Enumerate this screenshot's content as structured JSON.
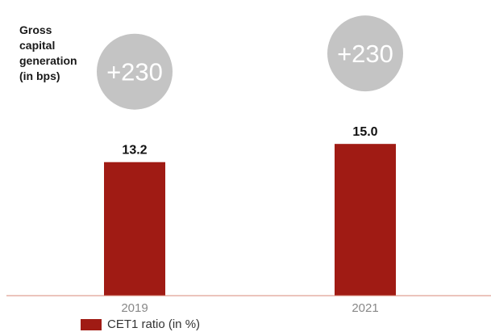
{
  "side_label": {
    "lines": [
      "Gross",
      "capital",
      "generation",
      "(in bps)"
    ]
  },
  "colors": {
    "bar": "#a01b14",
    "badge": "#c4c4c4",
    "badge_text": "#ffffff",
    "axis": "#d98a7a",
    "tick": "#888888",
    "value_label": "#111111"
  },
  "badges": [
    "+230",
    "+230"
  ],
  "chart_data": {
    "type": "bar",
    "categories": [
      "2019",
      "2021"
    ],
    "series": [
      {
        "name": "CET1 ratio (in %)",
        "values": [
          13.2,
          15.0
        ]
      }
    ],
    "data_labels": [
      "13.2",
      "15.0"
    ],
    "ylim": [
      0,
      23
    ],
    "grid": false,
    "legend": "bottom-left",
    "annotations": [
      "+230",
      "+230"
    ]
  }
}
